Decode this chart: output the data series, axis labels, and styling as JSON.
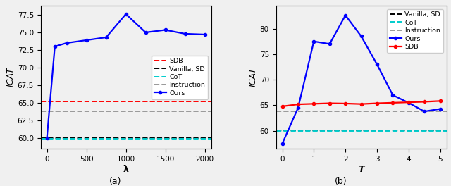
{
  "plot_a": {
    "lambda_x": [
      0,
      100,
      250,
      500,
      750,
      1000,
      1250,
      1500,
      1750,
      2000
    ],
    "ours_y": [
      60.0,
      73.0,
      73.5,
      73.9,
      74.3,
      77.6,
      75.0,
      75.35,
      74.8,
      74.7
    ],
    "sdb_y": 65.2,
    "vanilla_sd_y": 60.0,
    "cot_y": 59.95,
    "instruction_y": 63.8,
    "xlabel": "λ",
    "ylabel": "ICAT",
    "ylim": [
      58.5,
      78.8
    ],
    "yticks": [
      60.0,
      62.5,
      65.0,
      67.5,
      70.0,
      72.5,
      75.0,
      77.5
    ],
    "xticks": [
      0,
      500,
      1000,
      1500,
      2000
    ],
    "label": "(a)"
  },
  "plot_b": {
    "t_x": [
      0,
      0.5,
      1,
      1.5,
      2,
      2.5,
      3,
      3.5,
      4,
      4.5,
      5
    ],
    "ours_y": [
      57.5,
      64.5,
      77.5,
      77.0,
      82.6,
      78.5,
      73.0,
      67.0,
      65.5,
      63.8,
      64.3
    ],
    "sdb_y": [
      64.8,
      65.2,
      65.3,
      65.4,
      65.35,
      65.25,
      65.4,
      65.5,
      65.6,
      65.7,
      65.85
    ],
    "vanilla_sd_y": 60.05,
    "cot_y": 59.95,
    "instruction_y": 63.85,
    "xlabel": "T",
    "ylabel": "ICAT",
    "ylim": [
      56.5,
      84.5
    ],
    "yticks": [
      60,
      65,
      70,
      75,
      80
    ],
    "xticks": [
      0,
      1,
      2,
      3,
      4,
      5
    ],
    "label": "(b)"
  },
  "colors": {
    "sdb": "#FF0000",
    "vanilla_sd": "#000000",
    "cot": "#00CCCC",
    "instruction": "#999999",
    "ours": "#0000FF"
  },
  "fig_width": 6.4,
  "fig_height": 2.64,
  "dpi": 100
}
